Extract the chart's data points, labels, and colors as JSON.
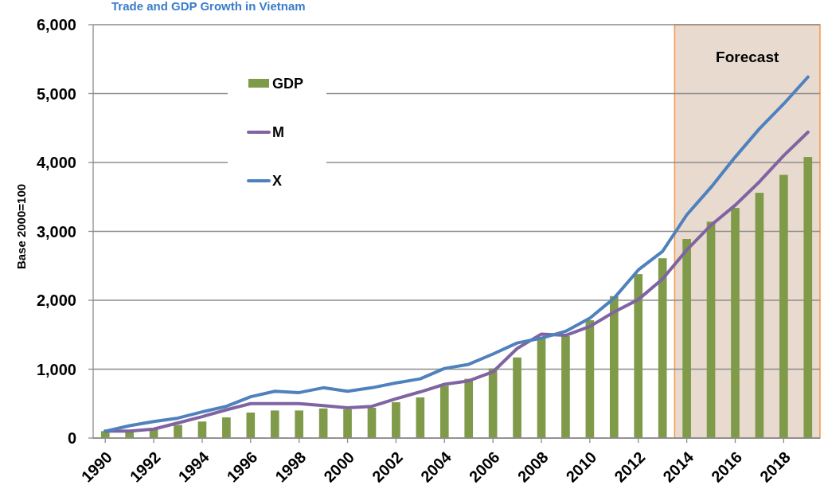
{
  "chart_data": {
    "type": "bar",
    "title": "Trade and GDP Growth in Vietnam",
    "ylabel": "Base 2000=100",
    "x": [
      1990,
      1991,
      1992,
      1993,
      1994,
      1995,
      1996,
      1997,
      1998,
      1999,
      2000,
      2001,
      2002,
      2003,
      2004,
      2005,
      2006,
      2007,
      2008,
      2009,
      2010,
      2011,
      2012,
      2013,
      2014,
      2015,
      2016,
      2017,
      2018,
      2019
    ],
    "xlim": [
      1989.5,
      2019.5
    ],
    "xticks": [
      1990,
      1992,
      1994,
      1996,
      1998,
      2000,
      2002,
      2004,
      2006,
      2008,
      2010,
      2012,
      2014,
      2016,
      2018
    ],
    "series": [
      {
        "name": "GDP",
        "color": "#7f9a48",
        "values": [
          100,
          100,
          130,
          190,
          240,
          300,
          370,
          400,
          400,
          430,
          420,
          440,
          520,
          590,
          760,
          860,
          1010,
          1170,
          1460,
          1480,
          1710,
          2060,
          2380,
          2610,
          2890,
          3140,
          3340,
          3560,
          3820,
          4080
        ]
      },
      {
        "name": "M",
        "type": "line",
        "color": "#8064a2",
        "values": [
          100,
          100,
          130,
          220,
          310,
          410,
          500,
          500,
          500,
          470,
          440,
          460,
          570,
          670,
          780,
          830,
          960,
          1300,
          1510,
          1490,
          1620,
          1830,
          2010,
          2310,
          2730,
          3090,
          3380,
          3720,
          4100,
          4440
        ]
      },
      {
        "name": "X",
        "type": "line",
        "color": "#4f81bd",
        "values": [
          100,
          180,
          240,
          290,
          380,
          460,
          600,
          680,
          660,
          730,
          680,
          730,
          800,
          860,
          1010,
          1070,
          1220,
          1380,
          1450,
          1550,
          1740,
          2030,
          2440,
          2710,
          3240,
          3640,
          4080,
          4490,
          4850,
          5240
        ]
      }
    ],
    "ylim": [
      0,
      6000
    ],
    "yticks": [
      0,
      {
        "value": 1000,
        "label": "1,000"
      },
      {
        "value": 2000,
        "label": "2,000"
      },
      {
        "value": 3000,
        "label": "3,000"
      },
      {
        "value": 4000,
        "label": "4,000"
      },
      {
        "value": 5000,
        "label": "5,000"
      },
      {
        "value": 6000,
        "label": "6,000"
      }
    ],
    "grid": "y",
    "legend": "top left",
    "bands": [
      {
        "axis": "x",
        "from": 2013.5,
        "to": 2019.5,
        "label": "Forecast",
        "color": "#e8dacf"
      }
    ]
  }
}
